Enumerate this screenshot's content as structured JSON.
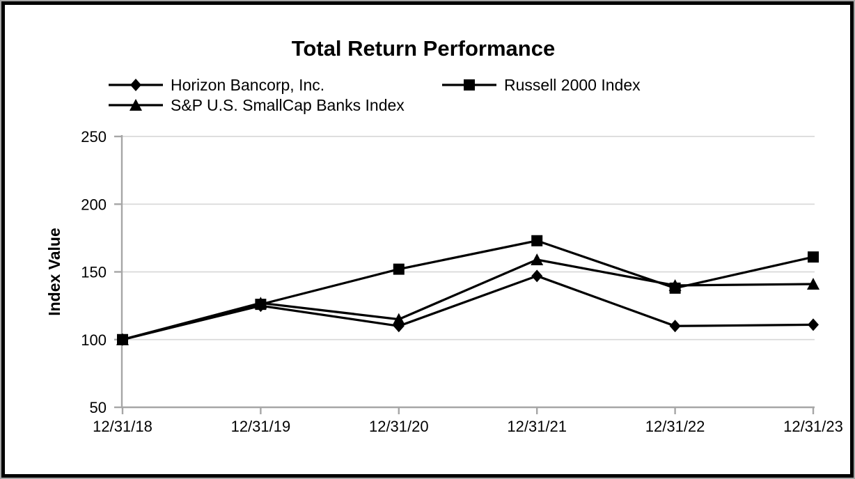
{
  "page": {
    "background": "#ffffff",
    "outer_edge_color": "#a6a6a6",
    "frame_color": "#000000"
  },
  "chart_data": {
    "type": "line",
    "title": "Total Return Performance",
    "ylabel": "Index Value",
    "xlabel": "",
    "categories": [
      "12/31/18",
      "12/31/19",
      "12/31/20",
      "12/31/21",
      "12/31/22",
      "12/31/23"
    ],
    "series": [
      {
        "name": "Horizon Bancorp, Inc.",
        "marker": "diamond",
        "color": "#000000",
        "values": [
          100,
          125,
          110,
          147,
          110,
          111
        ]
      },
      {
        "name": "Russell 2000 Index",
        "marker": "square",
        "color": "#000000",
        "values": [
          100,
          126,
          152,
          173,
          138,
          161
        ]
      },
      {
        "name": "S&P U.S. SmallCap Banks Index",
        "marker": "triangle",
        "color": "#000000",
        "values": [
          100,
          127,
          115,
          159,
          140,
          141
        ]
      }
    ],
    "ylim": [
      50,
      250
    ],
    "yticks": [
      50,
      100,
      150,
      200,
      250
    ],
    "grid": true,
    "legend_position": "top",
    "axis_color": "#a6a6a6",
    "grid_color": "#d9d9d9",
    "text_color": "#000000"
  }
}
